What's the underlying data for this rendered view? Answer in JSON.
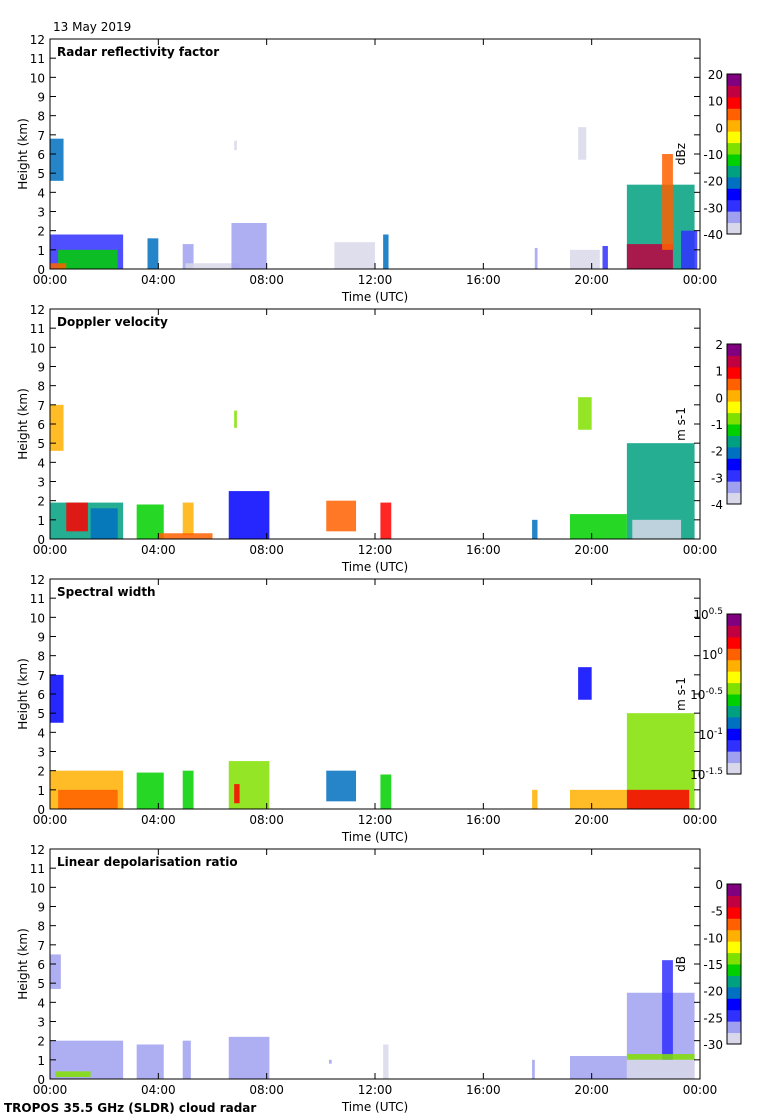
{
  "date": "13 May 2019",
  "footer": "TROPOS 35.5 GHz (SLDR) cloud radar",
  "colormap": [
    "#d8d8ea",
    "#a0a0f0",
    "#3030ff",
    "#0000ff",
    "#0070c0",
    "#00a080",
    "#00d000",
    "#80e000",
    "#ffff00",
    "#ffb000",
    "#ff6000",
    "#ff0000",
    "#c00040",
    "#800080"
  ],
  "chart_data": [
    {
      "type": "heatmap",
      "title": "Radar reflectivity factor",
      "xlabel": "Time (UTC)",
      "ylabel": "Height (km)",
      "xlim": [
        0,
        24
      ],
      "ylim": [
        0,
        12
      ],
      "xticks": [
        "00:00",
        "04:00",
        "08:00",
        "12:00",
        "16:00",
        "20:00",
        "00:00"
      ],
      "yticks": [
        "0",
        "1",
        "2",
        "3",
        "4",
        "5",
        "6",
        "7",
        "8",
        "9",
        "10",
        "11",
        "12"
      ],
      "colorbar": {
        "label": "dBz",
        "range": [
          -40,
          20
        ],
        "ticks": [
          "20",
          "10",
          "0",
          "-10",
          "-20",
          "-30",
          "-40"
        ]
      },
      "features": [
        [
          0,
          0.5,
          4.6,
          6.8,
          -22
        ],
        [
          0,
          2.7,
          0,
          1.8,
          -28
        ],
        [
          0.3,
          2.5,
          0,
          1,
          -12
        ],
        [
          0,
          0.6,
          0,
          0.3,
          5
        ],
        [
          3.6,
          4.0,
          0,
          1.6,
          -20
        ],
        [
          4.9,
          5.3,
          0,
          1.3,
          -32
        ],
        [
          5,
          7,
          0,
          0.3,
          -38
        ],
        [
          6.7,
          8.0,
          0,
          2.4,
          -32
        ],
        [
          6.8,
          6.9,
          6.2,
          6.7,
          -38
        ],
        [
          10.5,
          12.0,
          0,
          1.4,
          -38
        ],
        [
          12.3,
          12.5,
          0,
          1.8,
          -22
        ],
        [
          17.9,
          18.0,
          0,
          1.1,
          -32
        ],
        [
          19.2,
          20.3,
          0,
          1,
          -38
        ],
        [
          20.4,
          20.6,
          0,
          1.2,
          -28
        ],
        [
          19.5,
          19.8,
          5.7,
          7.4,
          -38
        ],
        [
          21.3,
          23.8,
          0,
          4.4,
          -15
        ],
        [
          21.3,
          23,
          0,
          1.3,
          15
        ],
        [
          22.6,
          23,
          1,
          6,
          5
        ],
        [
          23.3,
          23.9,
          0,
          2,
          -30
        ]
      ]
    },
    {
      "type": "heatmap",
      "title": "Doppler velocity",
      "xlabel": "Time (UTC)",
      "ylabel": "Height (km)",
      "xlim": [
        0,
        24
      ],
      "ylim": [
        0,
        12
      ],
      "xticks": [
        "00:00",
        "04:00",
        "08:00",
        "12:00",
        "16:00",
        "20:00",
        "00:00"
      ],
      "yticks": [
        "0",
        "1",
        "2",
        "3",
        "4",
        "5",
        "6",
        "7",
        "8",
        "9",
        "10",
        "11",
        "12"
      ],
      "colorbar": {
        "label": "m s-1",
        "range": [
          -4,
          2
        ],
        "ticks": [
          "2",
          "1",
          "0",
          "-1",
          "-2",
          "-3",
          "-4"
        ]
      },
      "features": [
        [
          0,
          0.5,
          4.6,
          7,
          0.2
        ],
        [
          0,
          2.7,
          0,
          1.9,
          -1.5
        ],
        [
          0.6,
          1.4,
          0.4,
          1.9,
          0.8
        ],
        [
          1.5,
          2.5,
          0,
          1.6,
          -2
        ],
        [
          3.2,
          4.2,
          0,
          1.8,
          -1.2
        ],
        [
          4.9,
          5.3,
          0.2,
          1.9,
          0.2
        ],
        [
          4,
          6,
          0,
          0.3,
          0.3
        ],
        [
          6.6,
          8.1,
          0,
          2.5,
          -2.6
        ],
        [
          6.8,
          6.9,
          5.8,
          6.7,
          -1
        ],
        [
          10.2,
          11.3,
          0.4,
          2,
          0.3
        ],
        [
          12.2,
          12.6,
          0,
          1.9,
          1
        ],
        [
          17.8,
          18.0,
          0,
          1,
          -2
        ],
        [
          19.2,
          21.3,
          0,
          1.3,
          -1.4
        ],
        [
          19.5,
          20,
          5.7,
          7.4,
          -1
        ],
        [
          21.3,
          23.8,
          0,
          5,
          -1.5
        ],
        [
          21.5,
          23.3,
          0,
          1,
          -3.8
        ]
      ]
    },
    {
      "type": "heatmap",
      "title": "Spectral width",
      "xlabel": "Time (UTC)",
      "ylabel": "Height (km)",
      "xlim": [
        0,
        24
      ],
      "ylim": [
        0,
        12
      ],
      "xticks": [
        "00:00",
        "04:00",
        "08:00",
        "12:00",
        "16:00",
        "20:00",
        "00:00"
      ],
      "yticks": [
        "0",
        "1",
        "2",
        "3",
        "4",
        "5",
        "6",
        "7",
        "8",
        "9",
        "10",
        "11",
        "12"
      ],
      "colorbar": {
        "label": "m s-1",
        "range": [
          -1.5,
          0.5
        ],
        "scale": "log10",
        "ticks": [
          "10^0.5",
          "10^0",
          "10^-0.5",
          "10^-1",
          "10^-1.5"
        ]
      },
      "features": [
        [
          0,
          0.5,
          4.5,
          7,
          -1
        ],
        [
          0,
          2.7,
          0,
          2,
          -0.2
        ],
        [
          0.3,
          2.5,
          0,
          1,
          0.05
        ],
        [
          3.2,
          4.2,
          0,
          1.9,
          -0.6
        ],
        [
          4.9,
          5.3,
          0,
          2,
          -0.6
        ],
        [
          6.6,
          8.1,
          0,
          2.5,
          -0.4
        ],
        [
          6.8,
          7.0,
          0.3,
          1.3,
          0.1
        ],
        [
          10.2,
          11.3,
          0.4,
          2,
          -0.8
        ],
        [
          12.2,
          12.6,
          0,
          1.8,
          -0.6
        ],
        [
          17.8,
          18.0,
          0,
          1,
          -0.1
        ],
        [
          19.2,
          21.3,
          0,
          1,
          -0.2
        ],
        [
          19.5,
          20,
          5.7,
          7.4,
          -1
        ],
        [
          21.3,
          23.8,
          0,
          5,
          -0.5
        ],
        [
          21.3,
          23.6,
          0,
          1,
          0.15
        ]
      ]
    },
    {
      "type": "heatmap",
      "title": "Linear depolarisation ratio",
      "xlabel": "Time (UTC)",
      "ylabel": "Height (km)",
      "xlim": [
        0,
        24
      ],
      "ylim": [
        0,
        12
      ],
      "xticks": [
        "00:00",
        "04:00",
        "08:00",
        "12:00",
        "16:00",
        "20:00",
        "00:00"
      ],
      "yticks": [
        "0",
        "1",
        "2",
        "3",
        "4",
        "5",
        "6",
        "7",
        "8",
        "9",
        "10",
        "11",
        "12"
      ],
      "colorbar": {
        "label": "dB",
        "range": [
          -30,
          0
        ],
        "ticks": [
          "0",
          "-5",
          "-10",
          "-15",
          "-20",
          "-25",
          "-30"
        ]
      },
      "features": [
        [
          0,
          0.4,
          4.7,
          6.5,
          -26
        ],
        [
          0,
          2.7,
          0,
          2,
          -27
        ],
        [
          0.2,
          1.5,
          0.1,
          0.4,
          -15
        ],
        [
          3.2,
          4.2,
          0,
          1.8,
          -27
        ],
        [
          4.9,
          5.2,
          0,
          2,
          -26
        ],
        [
          6.6,
          8.1,
          0,
          2.2,
          -26
        ],
        [
          10.3,
          10.4,
          0.8,
          1,
          -27
        ],
        [
          12.3,
          12.5,
          0,
          1.8,
          -28
        ],
        [
          17.8,
          17.9,
          0,
          1,
          -27
        ],
        [
          19.2,
          21.3,
          0,
          1.2,
          -27
        ],
        [
          21.3,
          23.8,
          0,
          4.5,
          -26
        ],
        [
          22.6,
          23,
          1,
          6.2,
          -24
        ],
        [
          21.3,
          23.8,
          1,
          1.3,
          -15
        ],
        [
          21.3,
          23.8,
          0,
          1,
          -30
        ]
      ]
    }
  ]
}
